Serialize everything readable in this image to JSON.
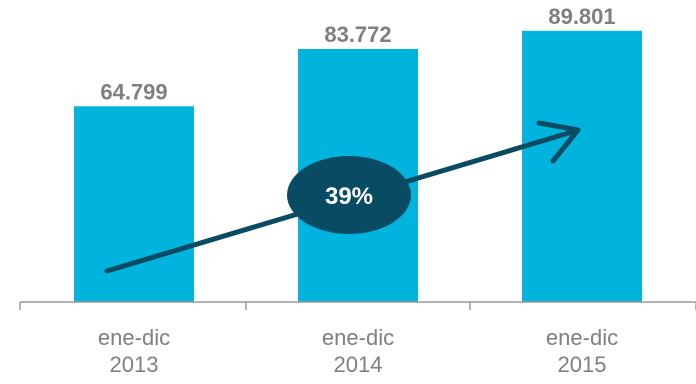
{
  "chart_data": {
    "type": "bar",
    "categories": [
      [
        "ene-dic",
        "2013"
      ],
      [
        "ene-dic",
        "2014"
      ],
      [
        "ene-dic",
        "2015"
      ]
    ],
    "values": [
      64799,
      83772,
      89801
    ],
    "data_labels": [
      "64.799",
      "83.772",
      "89.801"
    ],
    "ylim": [
      0,
      100000
    ],
    "grid": false,
    "legend": "none",
    "bar_color": "#00b4dd",
    "annotation": {
      "text": "39%",
      "shape": "ellipse",
      "fill": "#084b62",
      "arrow": "upward trend arrow"
    }
  }
}
